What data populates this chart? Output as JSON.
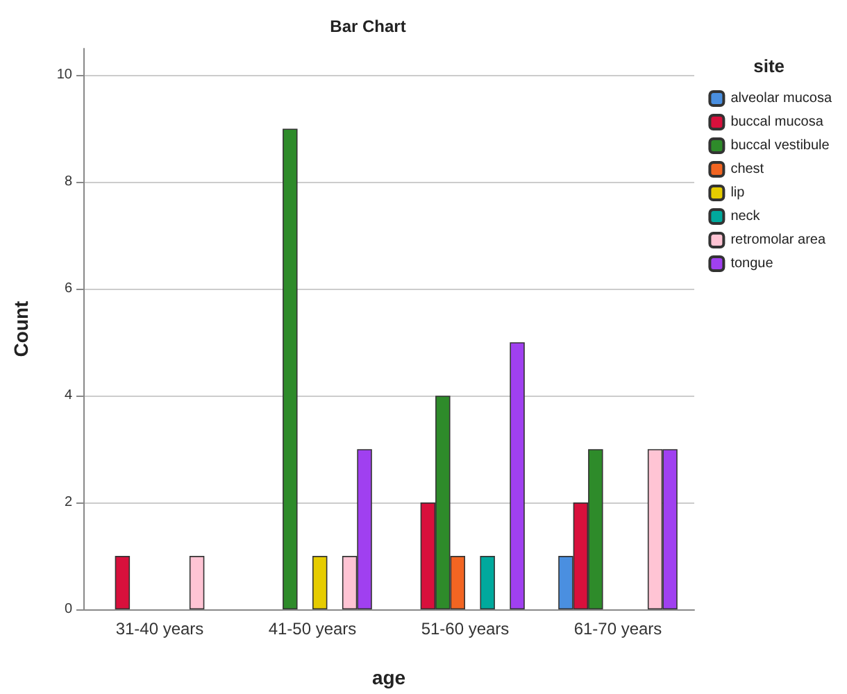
{
  "chart_data": {
    "type": "bar",
    "title": "Bar Chart",
    "xlabel": "age",
    "ylabel": "Count",
    "legend_title": "site",
    "categories": [
      "31-40 years",
      "41-50 years",
      "51-60 years",
      "61-70 years"
    ],
    "series": [
      {
        "name": "alveolar mucosa",
        "color": "#4a8fe0",
        "values": [
          null,
          null,
          null,
          1
        ]
      },
      {
        "name": "buccal mucosa",
        "color": "#d8103c",
        "values": [
          1,
          null,
          2,
          2
        ]
      },
      {
        "name": "buccal vestibule",
        "color": "#2e8b2a",
        "values": [
          null,
          9,
          4,
          3
        ]
      },
      {
        "name": "chest",
        "color": "#f26522",
        "values": [
          null,
          null,
          1,
          null
        ]
      },
      {
        "name": "lip",
        "color": "#e6cc00",
        "values": [
          null,
          1,
          null,
          null
        ]
      },
      {
        "name": "neck",
        "color": "#00a99d",
        "values": [
          null,
          null,
          1,
          null
        ]
      },
      {
        "name": "retromolar area",
        "color": "#ffc4d4",
        "values": [
          1,
          1,
          null,
          3
        ]
      },
      {
        "name": "tongue",
        "color": "#a040f0",
        "values": [
          null,
          3,
          5,
          3
        ]
      }
    ],
    "ylim": [
      0,
      10.5
    ],
    "yticks": [
      0,
      2,
      4,
      6,
      8,
      10
    ],
    "grid": "y",
    "legend": "right"
  }
}
